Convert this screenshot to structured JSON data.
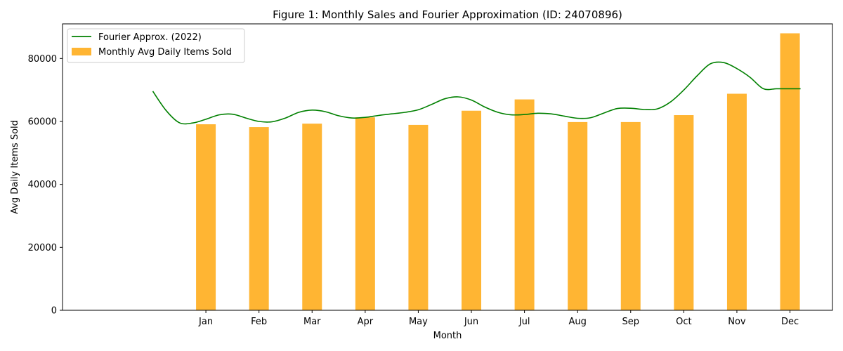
{
  "chart_data": {
    "type": "bar",
    "title": "Figure 1: Monthly Sales and Fourier Approximation (ID: 24070896)",
    "xlabel": "Month",
    "ylabel": "Avg Daily Items Sold",
    "categories": [
      "Jan",
      "Feb",
      "Mar",
      "Apr",
      "May",
      "Jun",
      "Jul",
      "Aug",
      "Sep",
      "Oct",
      "Nov",
      "Dec"
    ],
    "ylim": [
      0,
      91000
    ],
    "yticks": [
      0,
      20000,
      40000,
      60000,
      80000
    ],
    "ytick_labels": [
      "0",
      "20000",
      "40000",
      "60000",
      "80000"
    ],
    "grid": false,
    "legend_position": "upper left",
    "series": [
      {
        "name": "Monthly Avg Daily Items Sold",
        "type": "bar",
        "color": "#FFB533",
        "values": [
          59100,
          58200,
          59300,
          61300,
          58900,
          63400,
          67000,
          59800,
          59800,
          62000,
          68800,
          88000
        ]
      },
      {
        "name": "Fourier Approx. (2022)",
        "type": "line",
        "color": "#008000",
        "x": [
          0,
          0.25,
          0.5,
          0.75,
          1.0,
          1.25,
          1.5,
          1.75,
          2.0,
          2.25,
          2.5,
          2.75,
          3.0,
          3.25,
          3.5,
          3.75,
          4.0,
          4.25,
          4.5,
          4.75,
          5.0,
          5.25,
          5.5,
          5.75,
          6.0,
          6.25,
          6.5,
          6.75,
          7.0,
          7.25,
          7.5,
          7.75,
          8.0,
          8.25,
          8.5,
          8.75,
          9.0,
          9.25,
          9.5,
          9.75,
          10.0,
          10.25,
          10.5,
          10.75,
          11.0,
          11.25,
          11.5,
          11.75,
          12.0,
          12.2
        ],
        "values": [
          69600,
          63500,
          59600,
          59500,
          60700,
          62100,
          62300,
          61100,
          60000,
          59900,
          61100,
          62900,
          63600,
          63100,
          61800,
          61100,
          61300,
          61900,
          62400,
          62900,
          63700,
          65400,
          67200,
          67800,
          66800,
          64600,
          62900,
          62100,
          62200,
          62600,
          62400,
          61700,
          61000,
          61200,
          62700,
          64100,
          64200,
          63800,
          64000,
          66200,
          70000,
          74500,
          78300,
          78700,
          76800,
          74000,
          70400,
          70400,
          70400,
          70400
        ]
      }
    ]
  }
}
